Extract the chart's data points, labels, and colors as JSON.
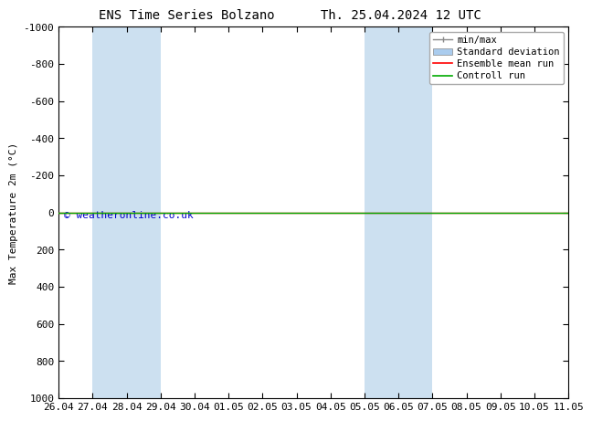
{
  "title_left": "ENS Time Series Bolzano",
  "title_right": "Th. 25.04.2024 12 UTC",
  "ylabel": "Max Temperature 2m (°C)",
  "ylim": [
    -1000,
    1000
  ],
  "yticks": [
    -1000,
    -800,
    -600,
    -400,
    -200,
    0,
    200,
    400,
    600,
    800,
    1000
  ],
  "xtick_labels": [
    "26.04",
    "27.04",
    "28.04",
    "29.04",
    "30.04",
    "01.05",
    "02.05",
    "03.05",
    "04.05",
    "05.05",
    "06.05",
    "07.05",
    "08.05",
    "09.05",
    "10.05",
    "11.05"
  ],
  "xtick_positions": [
    0,
    1,
    2,
    3,
    4,
    5,
    6,
    7,
    8,
    9,
    10,
    11,
    12,
    13,
    14,
    15
  ],
  "blue_shade_ranges": [
    [
      1,
      3
    ],
    [
      9,
      11
    ]
  ],
  "right_blue_shade_start": 15,
  "control_run_y": 0,
  "ensemble_mean_y": 0,
  "watermark": "© weatheronline.co.uk",
  "watermark_color": "#0000cc",
  "legend_labels": [
    "min/max",
    "Standard deviation",
    "Ensemble mean run",
    "Controll run"
  ],
  "minmax_color": "#888888",
  "stddev_color": "#aaccee",
  "ensemble_mean_color": "#ff0000",
  "control_run_color": "#00aa00",
  "bg_color": "#ffffff",
  "plot_bg_color": "#ffffff",
  "shade_color": "#cce0f0",
  "border_color": "#000000",
  "title_fontsize": 10,
  "ylabel_fontsize": 8,
  "tick_fontsize": 8,
  "legend_fontsize": 7.5
}
